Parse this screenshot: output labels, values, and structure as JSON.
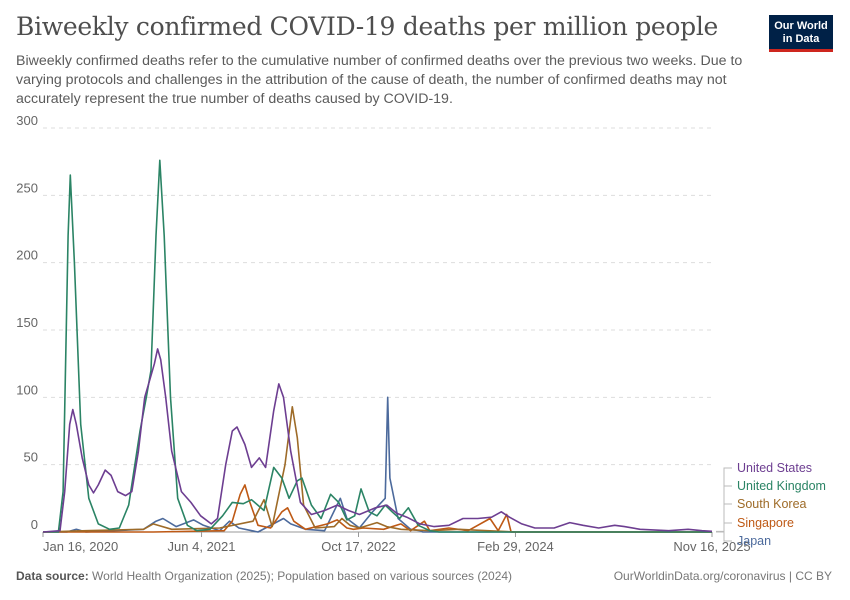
{
  "header": {
    "title": "Biweekly confirmed COVID-19 deaths per million people",
    "subtitle": "Biweekly confirmed deaths refer to the cumulative number of confirmed deaths over the previous two weeks. Due to varying protocols and challenges in the attribution of the cause of death, the number of confirmed deaths may not accurately represent the true number of deaths caused by COVID-19."
  },
  "logo": {
    "line1": "Our World",
    "line2": "in Data"
  },
  "footer": {
    "source_label": "Data source:",
    "source_text": " World Health Organization (2025); Population based on various sources (2024)",
    "right": "OurWorldinData.org/coronavirus | CC BY"
  },
  "chart_data": {
    "type": "line",
    "title": "Biweekly confirmed COVID-19 deaths per million people",
    "ylim": [
      0,
      300
    ],
    "y_ticks": [
      0,
      50,
      100,
      150,
      200,
      250,
      300
    ],
    "x_tick_labels": [
      "Jan 16, 2020",
      "Jun 4, 2021",
      "Oct 17, 2022",
      "Feb 29, 2024",
      "Nov 16, 2025"
    ],
    "x_tick_dates": [
      "2020-01-16",
      "2021-06-04",
      "2022-10-17",
      "2024-02-29",
      "2025-11-16"
    ],
    "grid": true,
    "legend_position": "right",
    "series": [
      {
        "name": "United States",
        "color": "#6d3e91",
        "points": [
          [
            "2020-01-16",
            0
          ],
          [
            "2020-03-10",
            1
          ],
          [
            "2020-03-25",
            30
          ],
          [
            "2020-04-10",
            80
          ],
          [
            "2020-04-20",
            91
          ],
          [
            "2020-05-01",
            80
          ],
          [
            "2020-05-20",
            55
          ],
          [
            "2020-06-10",
            35
          ],
          [
            "2020-06-25",
            29
          ],
          [
            "2020-07-10",
            35
          ],
          [
            "2020-08-01",
            46
          ],
          [
            "2020-08-20",
            42
          ],
          [
            "2020-09-10",
            30
          ],
          [
            "2020-10-05",
            27
          ],
          [
            "2020-10-25",
            30
          ],
          [
            "2020-11-15",
            60
          ],
          [
            "2020-12-05",
            100
          ],
          [
            "2020-12-20",
            112
          ],
          [
            "2021-01-05",
            125
          ],
          [
            "2021-01-15",
            136
          ],
          [
            "2021-01-25",
            128
          ],
          [
            "2021-02-10",
            100
          ],
          [
            "2021-03-01",
            60
          ],
          [
            "2021-04-01",
            30
          ],
          [
            "2021-05-01",
            22
          ],
          [
            "2021-06-01",
            12
          ],
          [
            "2021-07-05",
            6
          ],
          [
            "2021-07-25",
            10
          ],
          [
            "2021-08-20",
            50
          ],
          [
            "2021-09-10",
            75
          ],
          [
            "2021-09-25",
            78
          ],
          [
            "2021-10-20",
            65
          ],
          [
            "2021-11-10",
            48
          ],
          [
            "2021-12-05",
            55
          ],
          [
            "2021-12-25",
            48
          ],
          [
            "2022-01-20",
            90
          ],
          [
            "2022-02-05",
            110
          ],
          [
            "2022-02-20",
            100
          ],
          [
            "2022-03-15",
            60
          ],
          [
            "2022-04-15",
            22
          ],
          [
            "2022-05-20",
            13
          ],
          [
            "2022-07-01",
            16
          ],
          [
            "2022-08-10",
            20
          ],
          [
            "2022-09-15",
            16
          ],
          [
            "2022-10-20",
            13
          ],
          [
            "2022-12-10",
            18
          ],
          [
            "2023-01-15",
            20
          ],
          [
            "2023-02-15",
            14
          ],
          [
            "2023-03-20",
            11
          ],
          [
            "2023-05-01",
            6
          ],
          [
            "2023-06-15",
            4
          ],
          [
            "2023-08-01",
            5
          ],
          [
            "2023-09-15",
            10
          ],
          [
            "2023-11-01",
            10
          ],
          [
            "2023-12-15",
            11
          ],
          [
            "2024-01-15",
            15
          ],
          [
            "2024-02-10",
            11
          ],
          [
            "2024-03-20",
            6
          ],
          [
            "2024-05-01",
            3
          ],
          [
            "2024-07-01",
            3
          ],
          [
            "2024-08-20",
            7
          ],
          [
            "2024-10-01",
            5
          ],
          [
            "2024-11-20",
            3
          ],
          [
            "2025-01-10",
            5
          ],
          [
            "2025-02-10",
            4
          ],
          [
            "2025-04-01",
            2
          ],
          [
            "2025-07-01",
            1
          ],
          [
            "2025-09-01",
            2
          ],
          [
            "2025-10-15",
            1
          ],
          [
            "2025-11-16",
            0.5
          ]
        ]
      },
      {
        "name": "United Kingdom",
        "color": "#2b8465",
        "points": [
          [
            "2020-01-16",
            0
          ],
          [
            "2020-03-05",
            0
          ],
          [
            "2020-03-20",
            30
          ],
          [
            "2020-04-05",
            220
          ],
          [
            "2020-04-12",
            265
          ],
          [
            "2020-04-25",
            200
          ],
          [
            "2020-05-15",
            80
          ],
          [
            "2020-06-10",
            25
          ],
          [
            "2020-07-10",
            6
          ],
          [
            "2020-08-15",
            2
          ],
          [
            "2020-09-15",
            3
          ],
          [
            "2020-10-15",
            20
          ],
          [
            "2020-11-20",
            75
          ],
          [
            "2020-12-10",
            100
          ],
          [
            "2020-12-25",
            120
          ],
          [
            "2021-01-10",
            220
          ],
          [
            "2021-01-22",
            276
          ],
          [
            "2021-02-05",
            220
          ],
          [
            "2021-02-25",
            100
          ],
          [
            "2021-03-20",
            25
          ],
          [
            "2021-04-20",
            5
          ],
          [
            "2021-05-20",
            1
          ],
          [
            "2021-07-01",
            2
          ],
          [
            "2021-08-10",
            12
          ],
          [
            "2021-09-10",
            22
          ],
          [
            "2021-10-15",
            21
          ],
          [
            "2021-11-10",
            24
          ],
          [
            "2021-12-20",
            16
          ],
          [
            "2022-01-20",
            48
          ],
          [
            "2022-02-15",
            40
          ],
          [
            "2022-03-10",
            25
          ],
          [
            "2022-04-05",
            38
          ],
          [
            "2022-04-20",
            40
          ],
          [
            "2022-05-20",
            20
          ],
          [
            "2022-06-20",
            10
          ],
          [
            "2022-07-20",
            28
          ],
          [
            "2022-08-15",
            22
          ],
          [
            "2022-09-10",
            9
          ],
          [
            "2022-10-05",
            12
          ],
          [
            "2022-10-25",
            32
          ],
          [
            "2022-11-20",
            15
          ],
          [
            "2022-12-15",
            12
          ],
          [
            "2023-01-10",
            20
          ],
          [
            "2023-02-01",
            15
          ],
          [
            "2023-02-25",
            10
          ],
          [
            "2023-03-25",
            18
          ],
          [
            "2023-04-25",
            5
          ],
          [
            "2023-06-01",
            1
          ],
          [
            "2023-07-01",
            0
          ],
          [
            "2024-06-01",
            0
          ],
          [
            "2025-11-16",
            0
          ]
        ]
      },
      {
        "name": "South Korea",
        "color": "#9e6b28",
        "points": [
          [
            "2020-01-16",
            0
          ],
          [
            "2020-06-01",
            1
          ],
          [
            "2020-12-01",
            2
          ],
          [
            "2021-01-01",
            6
          ],
          [
            "2021-03-01",
            2
          ],
          [
            "2021-08-01",
            3
          ],
          [
            "2021-11-15",
            8
          ],
          [
            "2021-12-20",
            24
          ],
          [
            "2022-01-15",
            4
          ],
          [
            "2022-02-25",
            50
          ],
          [
            "2022-03-20",
            93
          ],
          [
            "2022-04-05",
            70
          ],
          [
            "2022-04-25",
            20
          ],
          [
            "2022-06-01",
            3
          ],
          [
            "2022-08-01",
            4
          ],
          [
            "2022-08-25",
            10
          ],
          [
            "2022-09-20",
            5
          ],
          [
            "2022-10-20",
            3
          ],
          [
            "2022-12-15",
            7
          ],
          [
            "2023-01-15",
            4
          ],
          [
            "2023-03-01",
            2
          ],
          [
            "2023-06-01",
            1
          ],
          [
            "2023-09-01",
            2
          ],
          [
            "2023-12-01",
            1
          ],
          [
            "2024-03-01",
            0
          ],
          [
            "2025-11-16",
            0
          ]
        ]
      },
      {
        "name": "Singapore",
        "color": "#be5915",
        "points": [
          [
            "2020-01-16",
            0
          ],
          [
            "2021-01-01",
            0
          ],
          [
            "2021-08-15",
            1
          ],
          [
            "2021-09-10",
            8
          ],
          [
            "2021-10-05",
            28
          ],
          [
            "2021-10-20",
            35
          ],
          [
            "2021-11-05",
            22
          ],
          [
            "2021-12-01",
            5
          ],
          [
            "2022-01-10",
            3
          ],
          [
            "2022-02-15",
            15
          ],
          [
            "2022-03-05",
            18
          ],
          [
            "2022-03-25",
            8
          ],
          [
            "2022-05-01",
            2
          ],
          [
            "2022-07-10",
            6
          ],
          [
            "2022-08-10",
            9
          ],
          [
            "2022-09-10",
            3
          ],
          [
            "2022-10-01",
            2
          ],
          [
            "2022-11-01",
            3
          ],
          [
            "2023-01-05",
            2
          ],
          [
            "2023-03-01",
            6
          ],
          [
            "2023-04-01",
            1
          ],
          [
            "2023-05-15",
            8
          ],
          [
            "2023-06-01",
            1
          ],
          [
            "2023-08-01",
            3
          ],
          [
            "2023-10-01",
            1
          ],
          [
            "2023-12-10",
            10
          ],
          [
            "2024-01-05",
            1
          ],
          [
            "2024-02-01",
            13
          ],
          [
            "2024-02-15",
            0
          ],
          [
            "2025-11-16",
            0
          ]
        ]
      },
      {
        "name": "Japan",
        "color": "#4c6a9c",
        "points": [
          [
            "2020-01-16",
            0
          ],
          [
            "2020-04-01",
            0
          ],
          [
            "2020-05-01",
            2
          ],
          [
            "2020-06-01",
            0
          ],
          [
            "2020-12-01",
            2
          ],
          [
            "2021-01-10",
            8
          ],
          [
            "2021-02-01",
            10
          ],
          [
            "2021-03-15",
            4
          ],
          [
            "2021-05-10",
            9
          ],
          [
            "2021-06-10",
            5
          ],
          [
            "2021-08-01",
            1
          ],
          [
            "2021-09-01",
            8
          ],
          [
            "2021-10-01",
            3
          ],
          [
            "2021-12-01",
            0
          ],
          [
            "2022-02-20",
            10
          ],
          [
            "2022-03-15",
            6
          ],
          [
            "2022-05-01",
            2
          ],
          [
            "2022-07-01",
            1
          ],
          [
            "2022-08-20",
            25
          ],
          [
            "2022-09-10",
            10
          ],
          [
            "2022-10-20",
            3
          ],
          [
            "2022-12-01",
            15
          ],
          [
            "2023-01-10",
            25
          ],
          [
            "2023-01-18",
            100
          ],
          [
            "2023-01-25",
            40
          ],
          [
            "2023-02-20",
            10
          ],
          [
            "2023-04-01",
            2
          ],
          [
            "2023-05-01",
            1
          ],
          [
            "2023-05-10",
            0
          ],
          [
            "2025-11-16",
            0
          ]
        ]
      }
    ]
  }
}
